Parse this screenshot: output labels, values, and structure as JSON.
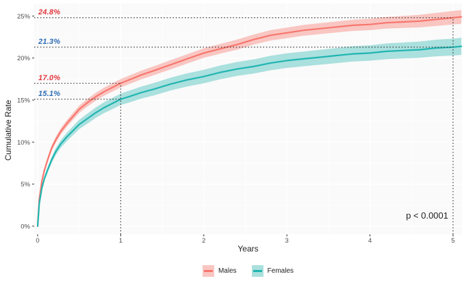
{
  "figure": {
    "background": "#ffffff",
    "panel_bg": "#fafafa",
    "grid_color": "#ffffff",
    "tick_color": "#333333",
    "tick_label_color": "#4d4d4d",
    "reference_line_color": "#2b2b2b"
  },
  "chart_data": {
    "type": "line",
    "title": "",
    "xlabel": "Years",
    "ylabel": "Cumulative Rate",
    "xlim": [
      0,
      5.12
    ],
    "ylim": [
      0,
      26.5
    ],
    "x_ticks": [
      0,
      1,
      2,
      3,
      4,
      5
    ],
    "y_ticks": [
      0,
      5,
      10,
      15,
      20,
      25
    ],
    "y_tick_suffix": "%",
    "grid": true,
    "legend_position": "bottom",
    "x": [
      0,
      0.02,
      0.05,
      0.08,
      0.12,
      0.17,
      0.22,
      0.28,
      0.35,
      0.42,
      0.5,
      0.6,
      0.7,
      0.8,
      0.9,
      1.0,
      1.1,
      1.25,
      1.4,
      1.6,
      1.8,
      2.0,
      2.2,
      2.4,
      2.6,
      2.8,
      3.0,
      3.2,
      3.4,
      3.6,
      3.8,
      4.0,
      4.2,
      4.4,
      4.6,
      4.8,
      5.0,
      5.1
    ],
    "series": [
      {
        "name": "Males",
        "color": "#f8766d",
        "band_color": "#f9c6c2",
        "values": [
          0,
          3.2,
          5.3,
          6.6,
          7.9,
          9.3,
          10.3,
          11.3,
          12.2,
          13.0,
          13.9,
          14.7,
          15.4,
          16.0,
          16.5,
          17.0,
          17.4,
          18.0,
          18.5,
          19.2,
          19.9,
          20.6,
          21.1,
          21.6,
          22.2,
          22.7,
          23.0,
          23.3,
          23.5,
          23.7,
          23.9,
          24.0,
          24.2,
          24.3,
          24.4,
          24.6,
          24.8,
          24.9
        ],
        "ci_halfwidth": [
          0.03,
          0.15,
          0.2,
          0.25,
          0.3,
          0.33,
          0.36,
          0.38,
          0.4,
          0.42,
          0.44,
          0.46,
          0.47,
          0.48,
          0.5,
          0.5,
          0.51,
          0.52,
          0.53,
          0.55,
          0.56,
          0.57,
          0.58,
          0.6,
          0.6,
          0.62,
          0.63,
          0.64,
          0.65,
          0.66,
          0.67,
          0.68,
          0.7,
          0.72,
          0.75,
          0.78,
          0.8,
          0.82
        ]
      },
      {
        "name": "Females",
        "color": "#20b5b1",
        "band_color": "#aae0de",
        "values": [
          0,
          2.7,
          4.5,
          5.6,
          6.7,
          7.9,
          8.9,
          9.8,
          10.6,
          11.3,
          12.1,
          12.8,
          13.5,
          14.1,
          14.6,
          15.1,
          15.4,
          15.9,
          16.3,
          16.9,
          17.4,
          17.8,
          18.3,
          18.7,
          19.0,
          19.4,
          19.7,
          19.9,
          20.1,
          20.3,
          20.5,
          20.6,
          20.8,
          20.9,
          21.0,
          21.2,
          21.3,
          21.4
        ],
        "ci_halfwidth": [
          0.03,
          0.15,
          0.22,
          0.28,
          0.33,
          0.38,
          0.42,
          0.46,
          0.5,
          0.53,
          0.56,
          0.6,
          0.62,
          0.65,
          0.67,
          0.68,
          0.7,
          0.72,
          0.74,
          0.76,
          0.78,
          0.8,
          0.82,
          0.83,
          0.85,
          0.86,
          0.87,
          0.88,
          0.89,
          0.9,
          0.91,
          0.92,
          0.94,
          0.95,
          0.97,
          0.99,
          1.0,
          1.02
        ]
      }
    ],
    "annotations": {
      "labels": [
        {
          "text": "24.8%",
          "y": 24.8,
          "color": "#e2383e",
          "series": "Males"
        },
        {
          "text": "21.3%",
          "y": 21.3,
          "color": "#2e6db4",
          "series": "Females"
        },
        {
          "text": "17.0%",
          "y": 17.0,
          "color": "#e2383e",
          "series": "Males"
        },
        {
          "text": "15.1%",
          "y": 15.1,
          "color": "#2e6db4",
          "series": "Females"
        }
      ],
      "hlines": [
        {
          "y": 24.8,
          "x1": 5.0
        },
        {
          "y": 21.3,
          "x1": 5.0
        },
        {
          "y": 17.0,
          "x1": 1.0
        },
        {
          "y": 15.1,
          "x1": 1.0
        }
      ],
      "vlines": [
        {
          "x": 1.0,
          "y1": 17.0
        },
        {
          "x": 5.0,
          "y1": 24.8
        }
      ],
      "pvalue": "p < 0.0001"
    }
  },
  "legend": {
    "items": [
      {
        "label": "Males"
      },
      {
        "label": "Females"
      }
    ]
  }
}
